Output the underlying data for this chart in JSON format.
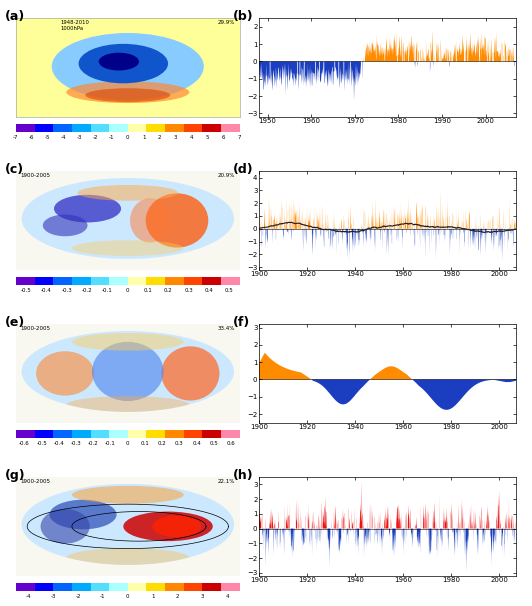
{
  "panel_labels": [
    "(a)",
    "(b)",
    "(c)",
    "(d)",
    "(e)",
    "(f)",
    "(g)",
    "(h)"
  ],
  "map_info": [
    {
      "label": "1948-2010\n1000hPa",
      "pct": "29.9%"
    },
    {
      "label": "1900-2005",
      "pct": "20.9%"
    },
    {
      "label": "1900-2005",
      "pct": "33.4%"
    },
    {
      "label": "1900-2005",
      "pct": "22.1%"
    }
  ],
  "ts_b": {
    "xlim": [
      1948,
      2007
    ],
    "ylim": [
      -3.2,
      2.5
    ],
    "yticks": [
      -3.0,
      -2.0,
      -1.0,
      0.0,
      1.0,
      2.0
    ],
    "xticks": [
      1950,
      1960,
      1970,
      1980,
      1990,
      2000
    ]
  },
  "ts_d": {
    "xlim": [
      1900,
      2007
    ],
    "ylim": [
      -3.2,
      4.5
    ],
    "yticks": [
      -3.0,
      -2.0,
      -1.0,
      0.0,
      1.0,
      2.0,
      3.0,
      4.0
    ],
    "xticks": [
      1900,
      1920,
      1940,
      1960,
      1980,
      2000
    ]
  },
  "ts_f": {
    "xlim": [
      1900,
      2007
    ],
    "ylim": [
      -2.5,
      3.2
    ],
    "yticks": [
      -2.0,
      -1.0,
      0.0,
      1.0,
      2.0,
      3.0
    ],
    "xticks": [
      1900,
      1920,
      1940,
      1960,
      1980,
      2000
    ]
  },
  "ts_h": {
    "xlim": [
      1900,
      2007
    ],
    "ylim": [
      -3.2,
      3.5
    ],
    "yticks": [
      -3.0,
      -2.0,
      -1.0,
      0.0,
      1.0,
      2.0,
      3.0
    ],
    "xticks": [
      1900,
      1920,
      1940,
      1960,
      1980,
      2000
    ]
  },
  "orange": "#FF8C00",
  "blue": "#1A3EBF",
  "red": "#EE1111",
  "cbar_colors_ao": [
    "#6600CC",
    "#0000FF",
    "#0066FF",
    "#00AAFF",
    "#55DDFF",
    "#AAFFFF",
    "#FFFFAA",
    "#FFDD00",
    "#FF8800",
    "#FF4400",
    "#CC0000",
    "#FF88AA"
  ],
  "cbar_ticks_ao": [
    -7,
    -6,
    -5,
    -4,
    -3,
    -2,
    -1,
    0,
    1,
    2,
    3,
    4,
    5,
    6,
    7
  ],
  "cbar_colors_pdo": [
    "#6600CC",
    "#0000FF",
    "#0066FF",
    "#00AAFF",
    "#55DDFF",
    "#AAFFFF",
    "#FFFFAA",
    "#FFDD00",
    "#FF8800",
    "#FF4400",
    "#CC0000",
    "#FF88AA"
  ],
  "cbar_ticks_pdo_labels": [
    "-0.5",
    "-0.4",
    "-0.3",
    "-0.2",
    "-0.1",
    "0.1",
    "0.2",
    "0.3",
    "0.4",
    "0.5"
  ],
  "cbar_colors_ipo": [
    "#6600CC",
    "#0000FF",
    "#0066FF",
    "#00AAFF",
    "#55DDFF",
    "#AAFFFF",
    "#FFFFAA",
    "#FFDD00",
    "#FF8800",
    "#FF4400",
    "#CC0000",
    "#FF88AA"
  ],
  "cbar_ticks_ipo_labels": [
    "-0.6",
    "-0.5",
    "-0.4",
    "-0.3",
    "-0.2",
    "-0.1",
    "0.1",
    "0.2",
    "0.3",
    "0.4",
    "0.5",
    "0.6"
  ],
  "cbar_colors_enso": [
    "#6600CC",
    "#0000FF",
    "#0066FF",
    "#00AAFF",
    "#55DDFF",
    "#AAFFFF",
    "#FFFFAA",
    "#FFDD00",
    "#FF8800",
    "#FF4400",
    "#CC0000",
    "#FF88AA"
  ],
  "cbar_ticks_enso_labels": [
    "-4",
    "-3",
    "-2",
    "-1",
    "0",
    "1",
    "2",
    "3",
    "4"
  ]
}
